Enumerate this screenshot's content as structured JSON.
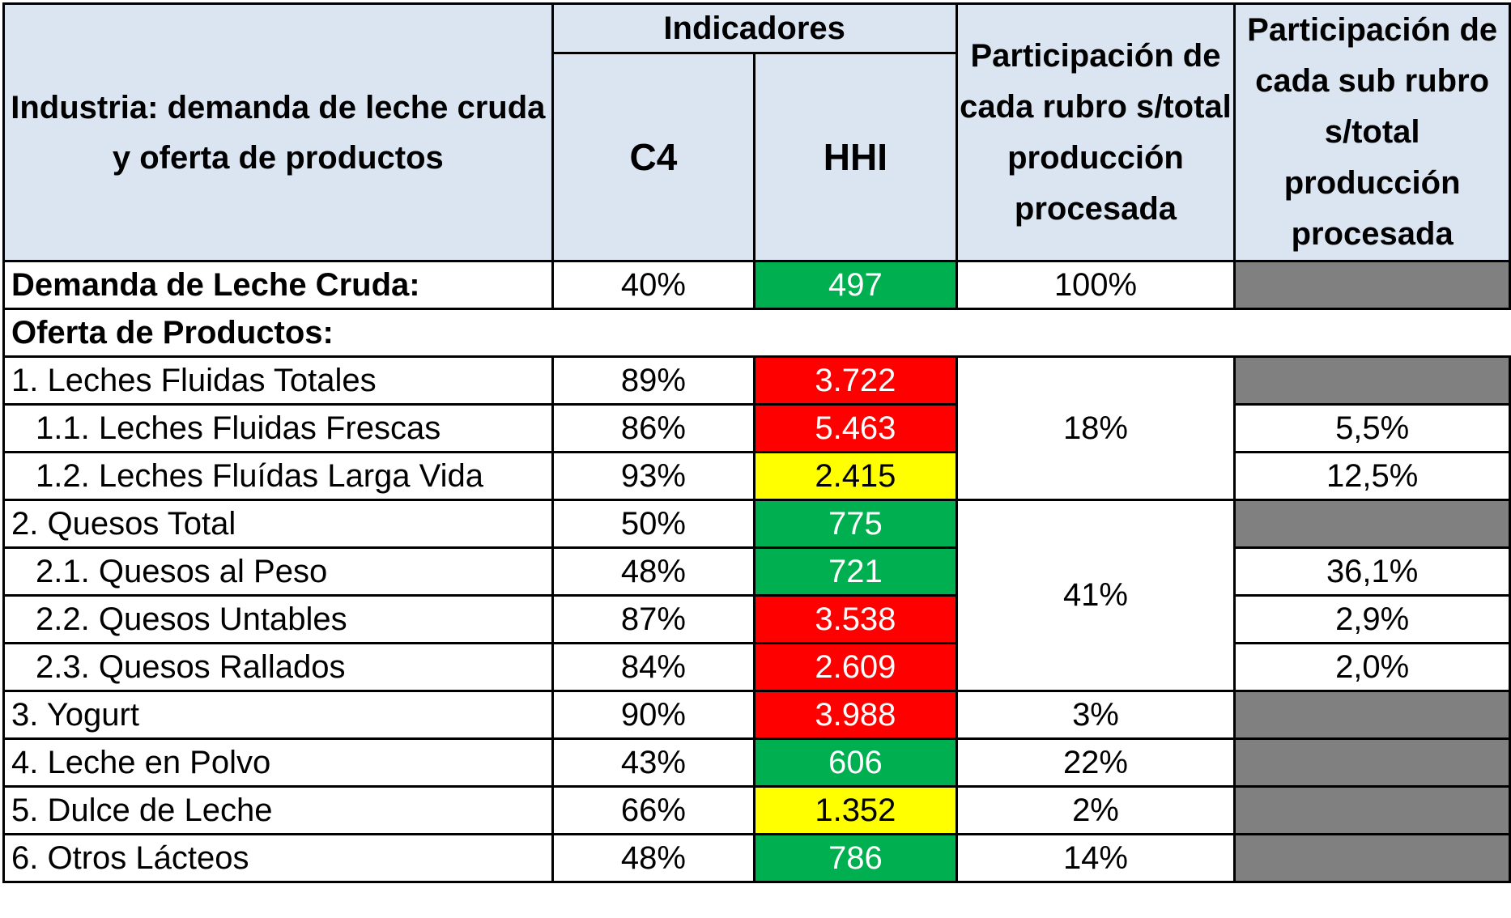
{
  "header": {
    "industry_title": "Industria: demanda de leche cruda y oferta de productos",
    "indicators": "Indicadores",
    "c4": "C4",
    "hhi": "HHI",
    "rubro_share": "Participación de cada rubro s/total producción procesada",
    "subrubro_share": "Participación de cada sub rubro s/total producción procesada"
  },
  "demand_row": {
    "label": "Demanda de Leche Cruda:",
    "c4": "40%",
    "hhi": "497",
    "hhi_level": "green",
    "rubro": "100%"
  },
  "section_label": "Oferta de Productos:",
  "rows": [
    {
      "label": "1. Leches Fluidas Totales",
      "c4": "89%",
      "hhi": "3.722",
      "hhi_level": "red",
      "sub": ""
    },
    {
      "label": "1.1. Leches Fluidas Frescas",
      "c4": "86%",
      "hhi": "5.463",
      "hhi_level": "red",
      "sub": "5,5%"
    },
    {
      "label": "1.2. Leches Fluídas Larga Vida",
      "c4": "93%",
      "hhi": "2.415",
      "hhi_level": "yellow",
      "sub": "12,5%"
    },
    {
      "label": "2. Quesos Total",
      "c4": "50%",
      "hhi": "775",
      "hhi_level": "green",
      "sub": ""
    },
    {
      "label": "2.1. Quesos al Peso",
      "c4": "48%",
      "hhi": "721",
      "hhi_level": "green",
      "sub": "36,1%"
    },
    {
      "label": "2.2. Quesos Untables",
      "c4": "87%",
      "hhi": "3.538",
      "hhi_level": "red",
      "sub": "2,9%"
    },
    {
      "label": "2.3. Quesos Rallados",
      "c4": "84%",
      "hhi": "2.609",
      "hhi_level": "red",
      "sub": "2,0%"
    },
    {
      "label": "3. Yogurt",
      "c4": "90%",
      "hhi": "3.988",
      "hhi_level": "red",
      "rubro": "3%"
    },
    {
      "label": "4. Leche en Polvo",
      "c4": "43%",
      "hhi": "606",
      "hhi_level": "green",
      "rubro": "22%"
    },
    {
      "label": "5. Dulce de Leche",
      "c4": "66%",
      "hhi": "1.352",
      "hhi_level": "yellow",
      "rubro": "2%"
    },
    {
      "label": "6. Otros Lácteos",
      "c4": "48%",
      "hhi": "786",
      "hhi_level": "green",
      "rubro": "14%"
    }
  ],
  "group_rubro": {
    "leches": "18%",
    "quesos": "41%"
  },
  "colors": {
    "header_bg": "#dbe5f1",
    "green": "#00b050",
    "red": "#ff0000",
    "yellow": "#ffff00",
    "gray": "#808080"
  }
}
